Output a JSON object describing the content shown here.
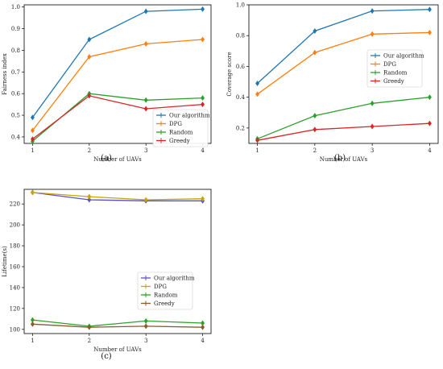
{
  "colors": {
    "our": "#1f77b4",
    "dpg": "#ff7f0e",
    "random": "#2ca02c",
    "greedy": "#d62728",
    "our_c": "#5a4fcf",
    "dpg_c": "#c9a400",
    "random_c": "#2ca02c",
    "greedy_c": "#8b5a2b"
  },
  "chart_data": [
    {
      "type": "line",
      "panel_label": "(a)",
      "xlabel": "Number of UAVs",
      "ylabel": "Fairness index",
      "x": [
        1,
        2,
        3,
        4
      ],
      "xticks": [
        "1",
        "2",
        "3",
        "4"
      ],
      "ylim": [
        0.37,
        1.01
      ],
      "yticks": [
        "0.4",
        "0.5",
        "0.6",
        "0.7",
        "0.8",
        "0.9",
        "1.0"
      ],
      "ytick_values": [
        0.4,
        0.5,
        0.6,
        0.7,
        0.8,
        0.9,
        1.0
      ],
      "legend_position": "lower-right",
      "series": [
        {
          "name": "Our algorithm",
          "values": [
            0.49,
            0.85,
            0.98,
            0.99
          ],
          "color_key": "our"
        },
        {
          "name": "DPG",
          "values": [
            0.43,
            0.77,
            0.83,
            0.85
          ],
          "color_key": "dpg"
        },
        {
          "name": "Random",
          "values": [
            0.38,
            0.6,
            0.57,
            0.58
          ],
          "color_key": "random"
        },
        {
          "name": "Greedy",
          "values": [
            0.39,
            0.59,
            0.53,
            0.55
          ],
          "color_key": "greedy"
        }
      ]
    },
    {
      "type": "line",
      "panel_label": "(b)",
      "xlabel": "Number of UAVs",
      "ylabel": "Coverage score",
      "x": [
        1,
        2,
        3,
        4
      ],
      "xticks": [
        "1",
        "2",
        "3",
        "4"
      ],
      "ylim": [
        0.1,
        1.0
      ],
      "yticks": [
        "0.2",
        "0.4",
        "0.6",
        "0.8",
        "1.0"
      ],
      "ytick_values": [
        0.2,
        0.4,
        0.6,
        0.8,
        1.0
      ],
      "legend_position": "center-right",
      "series": [
        {
          "name": "Our algorithm",
          "values": [
            0.49,
            0.83,
            0.96,
            0.97
          ],
          "color_key": "our"
        },
        {
          "name": "DPG",
          "values": [
            0.42,
            0.69,
            0.81,
            0.82
          ],
          "color_key": "dpg"
        },
        {
          "name": "Random",
          "values": [
            0.13,
            0.28,
            0.36,
            0.4
          ],
          "color_key": "random"
        },
        {
          "name": "Greedy",
          "values": [
            0.12,
            0.19,
            0.21,
            0.23
          ],
          "color_key": "greedy"
        }
      ]
    },
    {
      "type": "line",
      "panel_label": "(c)",
      "xlabel": "Number of UAVs",
      "ylabel": "Lifetime(s)",
      "x": [
        1,
        2,
        3,
        4
      ],
      "xticks": [
        "1",
        "2",
        "3",
        "4"
      ],
      "ylim": [
        96,
        234
      ],
      "yticks": [
        "100",
        "120",
        "140",
        "160",
        "180",
        "200",
        "220"
      ],
      "ytick_values": [
        100,
        120,
        140,
        160,
        180,
        200,
        220
      ],
      "legend_position": "center-right",
      "series": [
        {
          "name": "Our algorithm",
          "values": [
            231,
            224,
            223,
            223
          ],
          "color_key": "our_c"
        },
        {
          "name": "DPG",
          "values": [
            231,
            227,
            224,
            225
          ],
          "color_key": "dpg_c"
        },
        {
          "name": "Random",
          "values": [
            109,
            103,
            108,
            106
          ],
          "color_key": "random_c"
        },
        {
          "name": "Greedy",
          "values": [
            105,
            102,
            103,
            102
          ],
          "color_key": "greedy_c"
        }
      ]
    }
  ]
}
